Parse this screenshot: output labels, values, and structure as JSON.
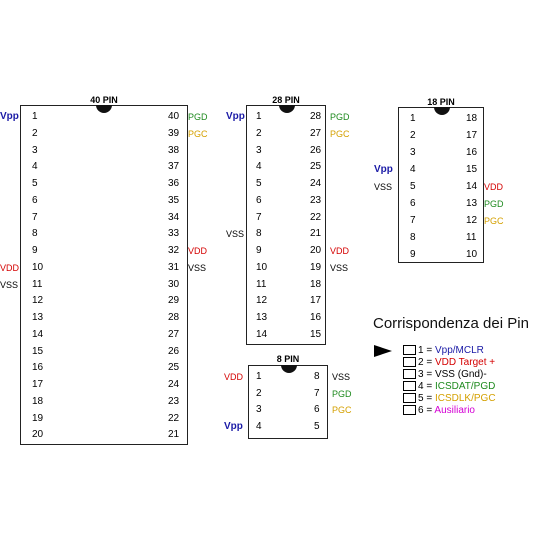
{
  "colors": {
    "vpp": "#1a1aa6",
    "vdd": "#d40000",
    "vss": "#000000",
    "pgd": "#1e8a1e",
    "pgc": "#d4a000",
    "aux": "#d400d4"
  },
  "chips": [
    {
      "id": "chip-40",
      "title": "40 PIN",
      "left": [
        "1",
        "2",
        "3",
        "4",
        "5",
        "6",
        "7",
        "8",
        "9",
        "10",
        "11",
        "12",
        "13",
        "14",
        "15",
        "16",
        "17",
        "18",
        "19",
        "20"
      ],
      "right": [
        "40",
        "39",
        "38",
        "37",
        "36",
        "35",
        "34",
        "33",
        "32",
        "31",
        "30",
        "29",
        "28",
        "27",
        "26",
        "25",
        "24",
        "23",
        "22",
        "21"
      ],
      "labels_left": [
        "Vpp",
        "",
        "",
        "",
        "",
        "",
        "",
        "",
        "",
        "VDD",
        "VSS",
        "",
        "",
        "",
        "",
        "",
        "",
        "",
        "",
        ""
      ],
      "labels_right": [
        "PGD",
        "PGC",
        "",
        "",
        "",
        "",
        "",
        "",
        "VDD",
        "VSS",
        "",
        "",
        "",
        "",
        "",
        "",
        "",
        "",
        "",
        ""
      ]
    },
    {
      "id": "chip-28",
      "title": "28 PIN",
      "left": [
        "1",
        "2",
        "3",
        "4",
        "5",
        "6",
        "7",
        "8",
        "9",
        "10",
        "11",
        "12",
        "13",
        "14"
      ],
      "right": [
        "28",
        "27",
        "26",
        "25",
        "24",
        "23",
        "22",
        "21",
        "20",
        "19",
        "18",
        "17",
        "16",
        "15"
      ],
      "labels_left": [
        "Vpp",
        "",
        "",
        "",
        "",
        "",
        "",
        "VSS",
        "",
        "",
        "",
        "",
        "",
        ""
      ],
      "labels_right": [
        "PGD",
        "PGC",
        "",
        "",
        "",
        "",
        "",
        "",
        "VDD",
        "VSS",
        "",
        "",
        "",
        ""
      ]
    },
    {
      "id": "chip-18",
      "title": "18 PIN",
      "left": [
        "1",
        "2",
        "3",
        "4",
        "5",
        "6",
        "7",
        "8",
        "9"
      ],
      "right": [
        "18",
        "17",
        "16",
        "15",
        "14",
        "13",
        "12",
        "11",
        "10"
      ],
      "labels_left": [
        "",
        "",
        "",
        "Vpp",
        "VSS",
        "",
        "",
        "",
        ""
      ],
      "labels_right": [
        "",
        "",
        "",
        "",
        "VDD",
        "PGD",
        "PGC",
        "",
        ""
      ]
    },
    {
      "id": "chip-8",
      "title": "8 PIN",
      "left": [
        "1",
        "2",
        "3",
        "4"
      ],
      "right": [
        "8",
        "7",
        "6",
        "5"
      ],
      "labels_left": [
        "VDD",
        "",
        "",
        "Vpp"
      ],
      "labels_right": [
        "VSS",
        "PGD",
        "PGC",
        ""
      ]
    }
  ],
  "legend": {
    "title": "Corrispondenza dei Pin",
    "items": [
      {
        "num": "1",
        "text": "Vpp/MCLR",
        "color": "vpp"
      },
      {
        "num": "2",
        "text": "VDD Target +",
        "color": "vdd"
      },
      {
        "num": "3",
        "text": "VSS (Gnd)-",
        "color": "vss"
      },
      {
        "num": "4",
        "text": "ICSDAT/PGD",
        "color": "pgd"
      },
      {
        "num": "5",
        "text": "ICSDLK/PGC",
        "color": "pgc"
      },
      {
        "num": "6",
        "text": "Ausiliario",
        "color": "aux"
      }
    ]
  }
}
